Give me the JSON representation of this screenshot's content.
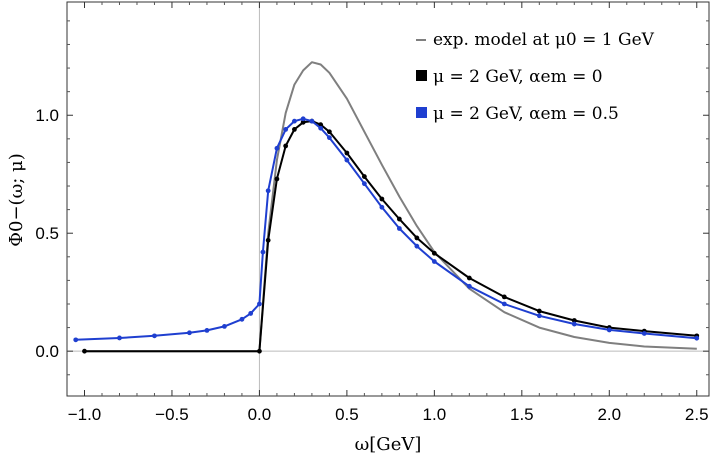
{
  "chart_data": {
    "type": "line",
    "xlabel": "ω[GeV]",
    "ylabel": "Φ0−(ω; μ)",
    "xlim": [
      -1.1,
      2.57
    ],
    "ylim": [
      -0.19,
      1.48
    ],
    "x_ticks": [
      -1.0,
      -0.5,
      0.0,
      0.5,
      1.0,
      1.5,
      2.0,
      2.5
    ],
    "x_tick_labels": [
      "−1.0",
      "−0.5",
      "0.0",
      "0.5",
      "1.0",
      "1.5",
      "2.0",
      "2.5"
    ],
    "y_ticks": [
      0.0,
      0.5,
      1.0
    ],
    "y_tick_labels": [
      "0.0",
      "0.5",
      "1.0"
    ],
    "grid": false,
    "legend_position": "top-right",
    "series": [
      {
        "name": "exp. model at μ0 = 1 GeV",
        "color": "#7f7f7f",
        "style": "line",
        "x": [
          -1.0,
          0.0,
          0.0,
          0.05,
          0.1,
          0.15,
          0.2,
          0.25,
          0.3,
          0.35,
          0.4,
          0.5,
          0.6,
          0.7,
          0.8,
          0.9,
          1.0,
          1.2,
          1.4,
          1.6,
          1.8,
          2.0,
          2.2,
          2.5
        ],
        "y": [
          0.0,
          0.0,
          0.0,
          0.5,
          0.81,
          1.01,
          1.13,
          1.19,
          1.225,
          1.215,
          1.18,
          1.07,
          0.93,
          0.79,
          0.655,
          0.53,
          0.42,
          0.265,
          0.165,
          0.1,
          0.06,
          0.035,
          0.02,
          0.01
        ]
      },
      {
        "name": "μ = 2 GeV, αem = 0",
        "color": "#000000",
        "style": "line+dots",
        "x": [
          -1.0,
          0.0,
          0.0,
          0.05,
          0.1,
          0.15,
          0.2,
          0.25,
          0.3,
          0.35,
          0.4,
          0.5,
          0.6,
          0.7,
          0.8,
          0.9,
          1.0,
          1.2,
          1.4,
          1.6,
          1.8,
          2.0,
          2.2,
          2.5
        ],
        "y": [
          0.0,
          0.0,
          0.0,
          0.47,
          0.73,
          0.87,
          0.94,
          0.97,
          0.975,
          0.96,
          0.93,
          0.84,
          0.74,
          0.645,
          0.56,
          0.48,
          0.415,
          0.31,
          0.23,
          0.17,
          0.13,
          0.1,
          0.085,
          0.065
        ]
      },
      {
        "name": "μ = 2 GeV, αem = 0.5",
        "color": "#1f3fd0",
        "style": "line+dots",
        "x": [
          -1.05,
          -0.8,
          -0.6,
          -0.4,
          -0.3,
          -0.2,
          -0.1,
          -0.05,
          0.0,
          0.02,
          0.05,
          0.1,
          0.15,
          0.2,
          0.25,
          0.3,
          0.35,
          0.4,
          0.5,
          0.6,
          0.7,
          0.8,
          0.9,
          1.0,
          1.2,
          1.4,
          1.6,
          1.8,
          2.0,
          2.2,
          2.5
        ],
        "y": [
          0.048,
          0.056,
          0.065,
          0.078,
          0.088,
          0.105,
          0.135,
          0.16,
          0.2,
          0.42,
          0.68,
          0.86,
          0.94,
          0.975,
          0.985,
          0.975,
          0.945,
          0.905,
          0.81,
          0.71,
          0.61,
          0.52,
          0.445,
          0.38,
          0.275,
          0.2,
          0.15,
          0.115,
          0.09,
          0.075,
          0.055
        ]
      }
    ]
  }
}
